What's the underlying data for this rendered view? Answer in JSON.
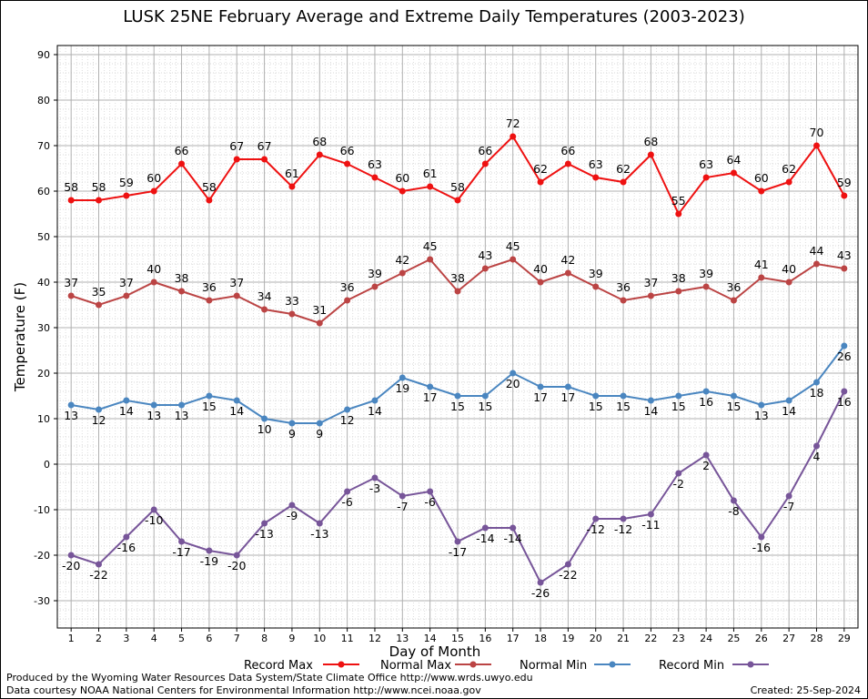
{
  "chart_data": {
    "type": "line",
    "title": "LUSK 25NE February Average and Extreme Daily Temperatures (2003-2023)",
    "xlabel": "Day of Month",
    "ylabel": "Temperature (F)",
    "x": [
      1,
      2,
      3,
      4,
      5,
      6,
      7,
      8,
      9,
      10,
      11,
      12,
      13,
      14,
      15,
      16,
      17,
      18,
      19,
      20,
      21,
      22,
      23,
      24,
      25,
      26,
      27,
      28,
      29
    ],
    "xlim": [
      0.5,
      29.5
    ],
    "ylim": [
      -36,
      92
    ],
    "yticks": [
      -30,
      -20,
      -10,
      0,
      10,
      20,
      30,
      40,
      50,
      60,
      70,
      80,
      90
    ],
    "grid": true,
    "legend": "bottom",
    "series": [
      {
        "name": "Record Max",
        "color": "#ee1111",
        "values": [
          58,
          58,
          59,
          60,
          66,
          58,
          67,
          67,
          61,
          68,
          66,
          63,
          60,
          61,
          58,
          66,
          72,
          62,
          66,
          63,
          62,
          68,
          55,
          63,
          64,
          60,
          62,
          70,
          59
        ]
      },
      {
        "name": "Normal Max",
        "color": "#bb4444",
        "values": [
          37,
          35,
          37,
          40,
          38,
          36,
          37,
          34,
          33,
          31,
          36,
          39,
          42,
          45,
          38,
          43,
          45,
          40,
          42,
          39,
          36,
          37,
          38,
          39,
          36,
          41,
          40,
          44,
          43
        ]
      },
      {
        "name": "Normal Min",
        "color": "#4a86c0",
        "values": [
          13,
          12,
          14,
          13,
          13,
          15,
          14,
          10,
          9,
          9,
          12,
          14,
          19,
          17,
          15,
          15,
          20,
          17,
          17,
          15,
          15,
          14,
          15,
          16,
          15,
          13,
          14,
          18,
          26
        ]
      },
      {
        "name": "Record Min",
        "color": "#775599",
        "values": [
          -20,
          -22,
          -16,
          -10,
          -17,
          -19,
          -20,
          -13,
          -9,
          -13,
          -6,
          -3,
          -7,
          -6,
          -17,
          -14,
          -14,
          -26,
          -22,
          -12,
          -12,
          -11,
          -2,
          2,
          -8,
          -16,
          -7,
          4,
          16
        ]
      }
    ]
  },
  "footer": {
    "produced_by": "Produced by the Wyoming Water Resources Data System/State Climate Office http://www.wrds.uwyo.edu",
    "data_courtesy": "Data courtesy NOAA National Centers for Environmental Information http://www.ncei.noaa.gov",
    "created": "Created:  25-Sep-2024"
  }
}
